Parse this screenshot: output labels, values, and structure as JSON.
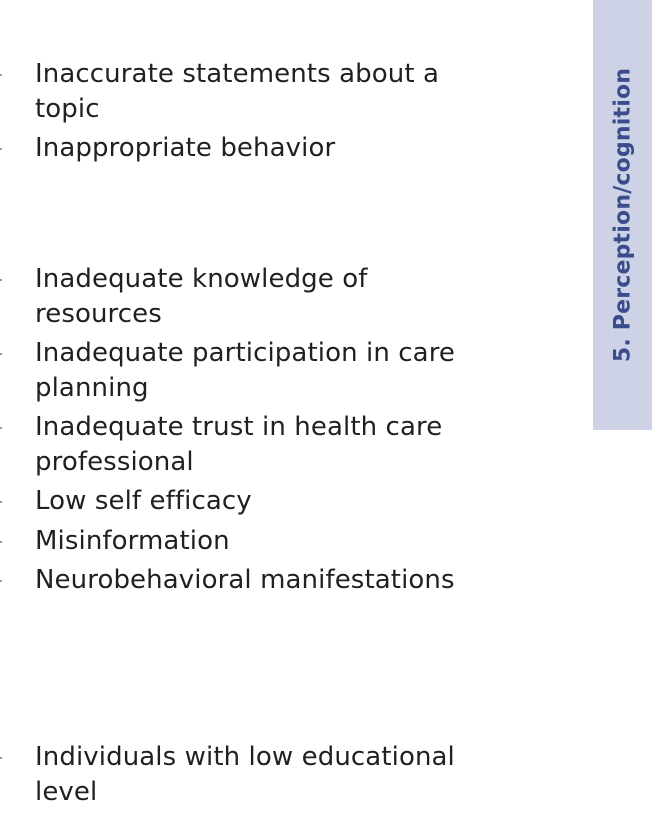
{
  "items": [
    {
      "text": "Inaccurate statements about a topic"
    },
    {
      "text": "Inappropriate behavior"
    },
    {
      "text": "Inadequate knowledge of resources"
    },
    {
      "text": "Inadequate participation in care planning"
    },
    {
      "text": "Inadequate trust in health care professional"
    },
    {
      "text": "Low self efficacy"
    },
    {
      "text": "Misinformation"
    },
    {
      "text": "Neurobehavioral manifestations"
    },
    {
      "text": "Individuals with low educational level"
    }
  ],
  "side_tab": {
    "label": "5. Perception/cognition"
  },
  "colors": {
    "tab_background": "#cdd2e6",
    "tab_text": "#3a4c8c",
    "body_text": "#231f20"
  }
}
